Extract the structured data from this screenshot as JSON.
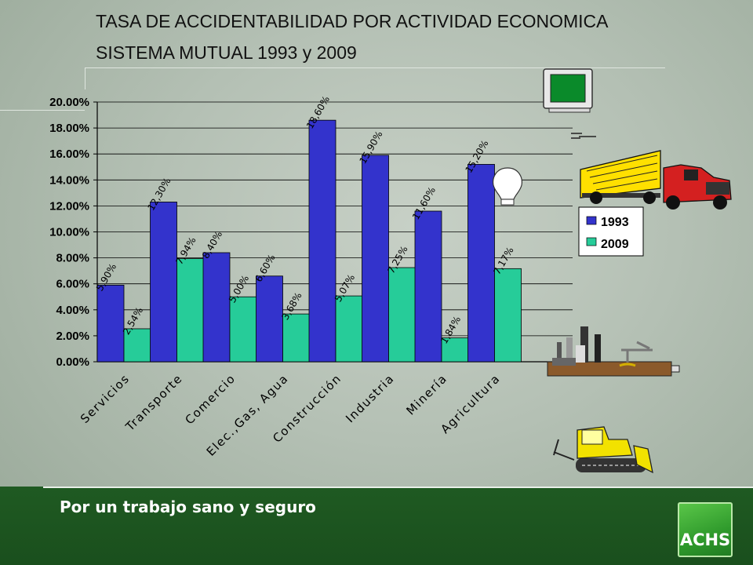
{
  "title_line1": "TASA DE ACCIDENTABILIDAD POR ACTIVIDAD ECONOMICA",
  "title_line2": "SISTEMA MUTUAL 1993 y 2009",
  "footer": {
    "slogan": "Por un trabajo sano y seguro",
    "logo_text": "ACHS"
  },
  "colors": {
    "s1993": "#3333cc",
    "s2009": "#26cc99",
    "footer": "#1f5a22"
  },
  "chart_data": {
    "type": "bar",
    "title": "",
    "xlabel": "",
    "ylabel": "",
    "ylim": [
      0,
      20
    ],
    "yticks": [
      "0.00%",
      "2.00%",
      "4.00%",
      "6.00%",
      "8.00%",
      "10.00%",
      "12.00%",
      "14.00%",
      "16.00%",
      "18.00%",
      "20.00%"
    ],
    "grid": true,
    "legend_position": "right",
    "categories": [
      "Servicios",
      "Transporte",
      "Comercio",
      "Elec.,Gas, Agua",
      "Construcción",
      "Industria",
      "Minería",
      "Agricultura"
    ],
    "series": [
      {
        "name": "1993",
        "values": [
          5.9,
          12.3,
          8.4,
          6.6,
          18.6,
          15.9,
          11.6,
          15.2
        ],
        "labels": [
          "5,90%",
          "12,30%",
          "8,40%",
          "6,60%",
          "18,60%",
          "15,90%",
          "11,60%",
          "15,20%"
        ]
      },
      {
        "name": "2009",
        "values": [
          2.54,
          7.94,
          5.0,
          3.68,
          5.07,
          7.25,
          1.84,
          7.17
        ],
        "labels": [
          "2,54%",
          "7,94%",
          "5,00%",
          "3,68%",
          "5,07%",
          "7,25%",
          "1,84%",
          "7,17%"
        ]
      }
    ]
  },
  "illustrations": [
    "computer-icon",
    "truck-icon",
    "lightbulb-icon",
    "factory-icon",
    "bulldozer-icon"
  ]
}
